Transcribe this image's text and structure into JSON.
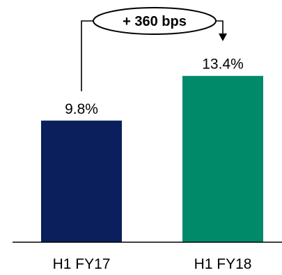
{
  "chart_data": {
    "type": "bar",
    "categories": [
      "H1 FY17",
      "H1 FY18"
    ],
    "values": [
      9.8,
      13.4
    ],
    "value_labels": [
      "9.8%",
      "13.4%"
    ],
    "bar_colors": [
      "#0b1f5c",
      "#008a6a"
    ],
    "ylim": [
      0,
      15
    ],
    "grid": false,
    "legend": "none",
    "annotation": {
      "text": "+ 360 bps",
      "from_category": "H1 FY17",
      "to_category": "H1 FY18"
    }
  }
}
